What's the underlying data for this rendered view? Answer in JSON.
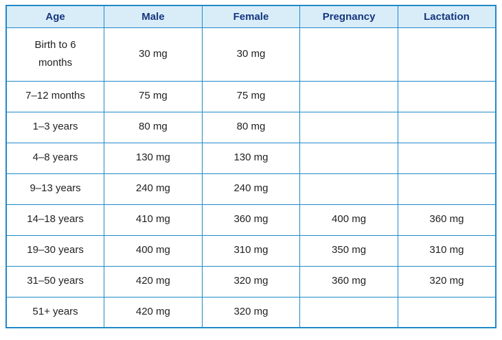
{
  "colors": {
    "border_blue": "#1e88c8",
    "header_background": "#d9edf9",
    "header_text": "#15357d",
    "body_text": "#212121"
  },
  "table": {
    "columns": [
      "Age",
      "Male",
      "Female",
      "Pregnancy",
      "Lactation"
    ],
    "rows": [
      {
        "age": "Birth to 6 months",
        "male": "30 mg",
        "female": "30 mg",
        "pregnancy": "",
        "lactation": ""
      },
      {
        "age": "7–12 months",
        "male": "75 mg",
        "female": "75 mg",
        "pregnancy": "",
        "lactation": ""
      },
      {
        "age": "1–3 years",
        "male": "80 mg",
        "female": "80 mg",
        "pregnancy": "",
        "lactation": ""
      },
      {
        "age": "4–8 years",
        "male": "130 mg",
        "female": "130 mg",
        "pregnancy": "",
        "lactation": ""
      },
      {
        "age": "9–13 years",
        "male": "240 mg",
        "female": "240 mg",
        "pregnancy": "",
        "lactation": ""
      },
      {
        "age": "14–18 years",
        "male": "410 mg",
        "female": "360 mg",
        "pregnancy": "400 mg",
        "lactation": "360 mg"
      },
      {
        "age": "19–30 years",
        "male": "400 mg",
        "female": "310 mg",
        "pregnancy": "350 mg",
        "lactation": "310 mg"
      },
      {
        "age": "31–50 years",
        "male": "420 mg",
        "female": "320 mg",
        "pregnancy": "360 mg",
        "lactation": "320 mg"
      },
      {
        "age": "51+ years",
        "male": "420 mg",
        "female": "320 mg",
        "pregnancy": "",
        "lactation": ""
      }
    ]
  }
}
